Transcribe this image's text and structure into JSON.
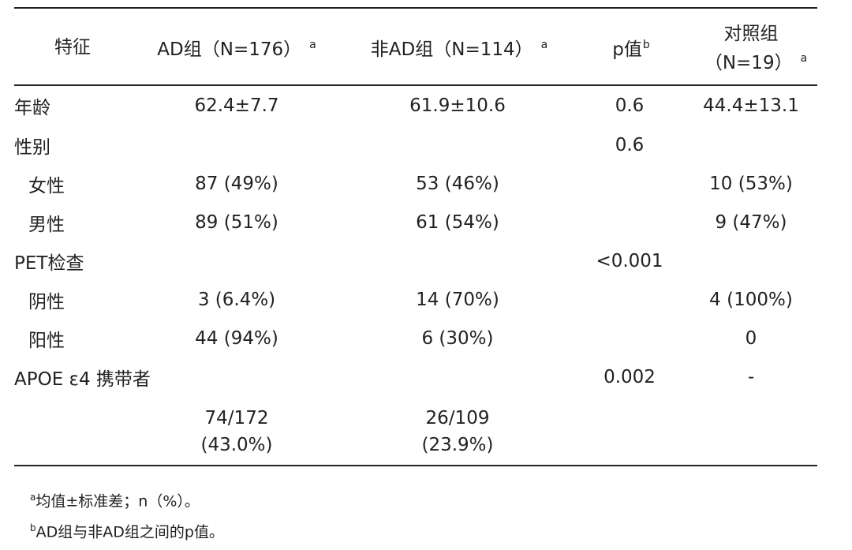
{
  "header": {
    "columns": [
      {
        "text": "特征"
      },
      {
        "text": "AD组（N=176）",
        "sup": "a"
      },
      {
        "text": "非AD组（N=114）",
        "sup": "a"
      },
      {
        "text": "p值",
        "sup": "b"
      },
      {
        "lines": [
          "对照组",
          "（N=19）"
        ],
        "sup": "a"
      }
    ]
  },
  "table": {
    "rows": [
      {
        "label": "年龄",
        "ad": "62.4±7.7",
        "non_ad": "61.9±10.6",
        "p": "0.6",
        "control": "44.4±13.1"
      },
      {
        "label": "性别",
        "p": "0.6"
      },
      {
        "label": "女性",
        "ad": "87 (49%)",
        "non_ad": "53 (46%)",
        "control": "10 (53%)"
      },
      {
        "label": "男性",
        "ad": "89 (51%)",
        "non_ad": "61 (54%)",
        "control": "9 (47%)"
      },
      {
        "label": "PET检查",
        "p": "<0.001"
      },
      {
        "label": "阴性",
        "ad": "3 (6.4%)",
        "non_ad": "14 (70%)",
        "control": "4 (100%)"
      },
      {
        "label": "阳性",
        "ad": "44 (94%)",
        "non_ad": "6 (30%)",
        "control": "0"
      },
      {
        "label": "APOE ε4 携带者",
        "p": "0.002",
        "control": "-"
      },
      {
        "ad": [
          "74/172",
          "(43.0%)"
        ],
        "non_ad": [
          "26/109",
          "(23.9%)"
        ]
      }
    ]
  },
  "footnotes": [
    {
      "marker": "a",
      "text": "均值±标准差；n（%）。"
    },
    {
      "marker": "b",
      "text": "AD组与非AD组之间的p值。"
    }
  ]
}
